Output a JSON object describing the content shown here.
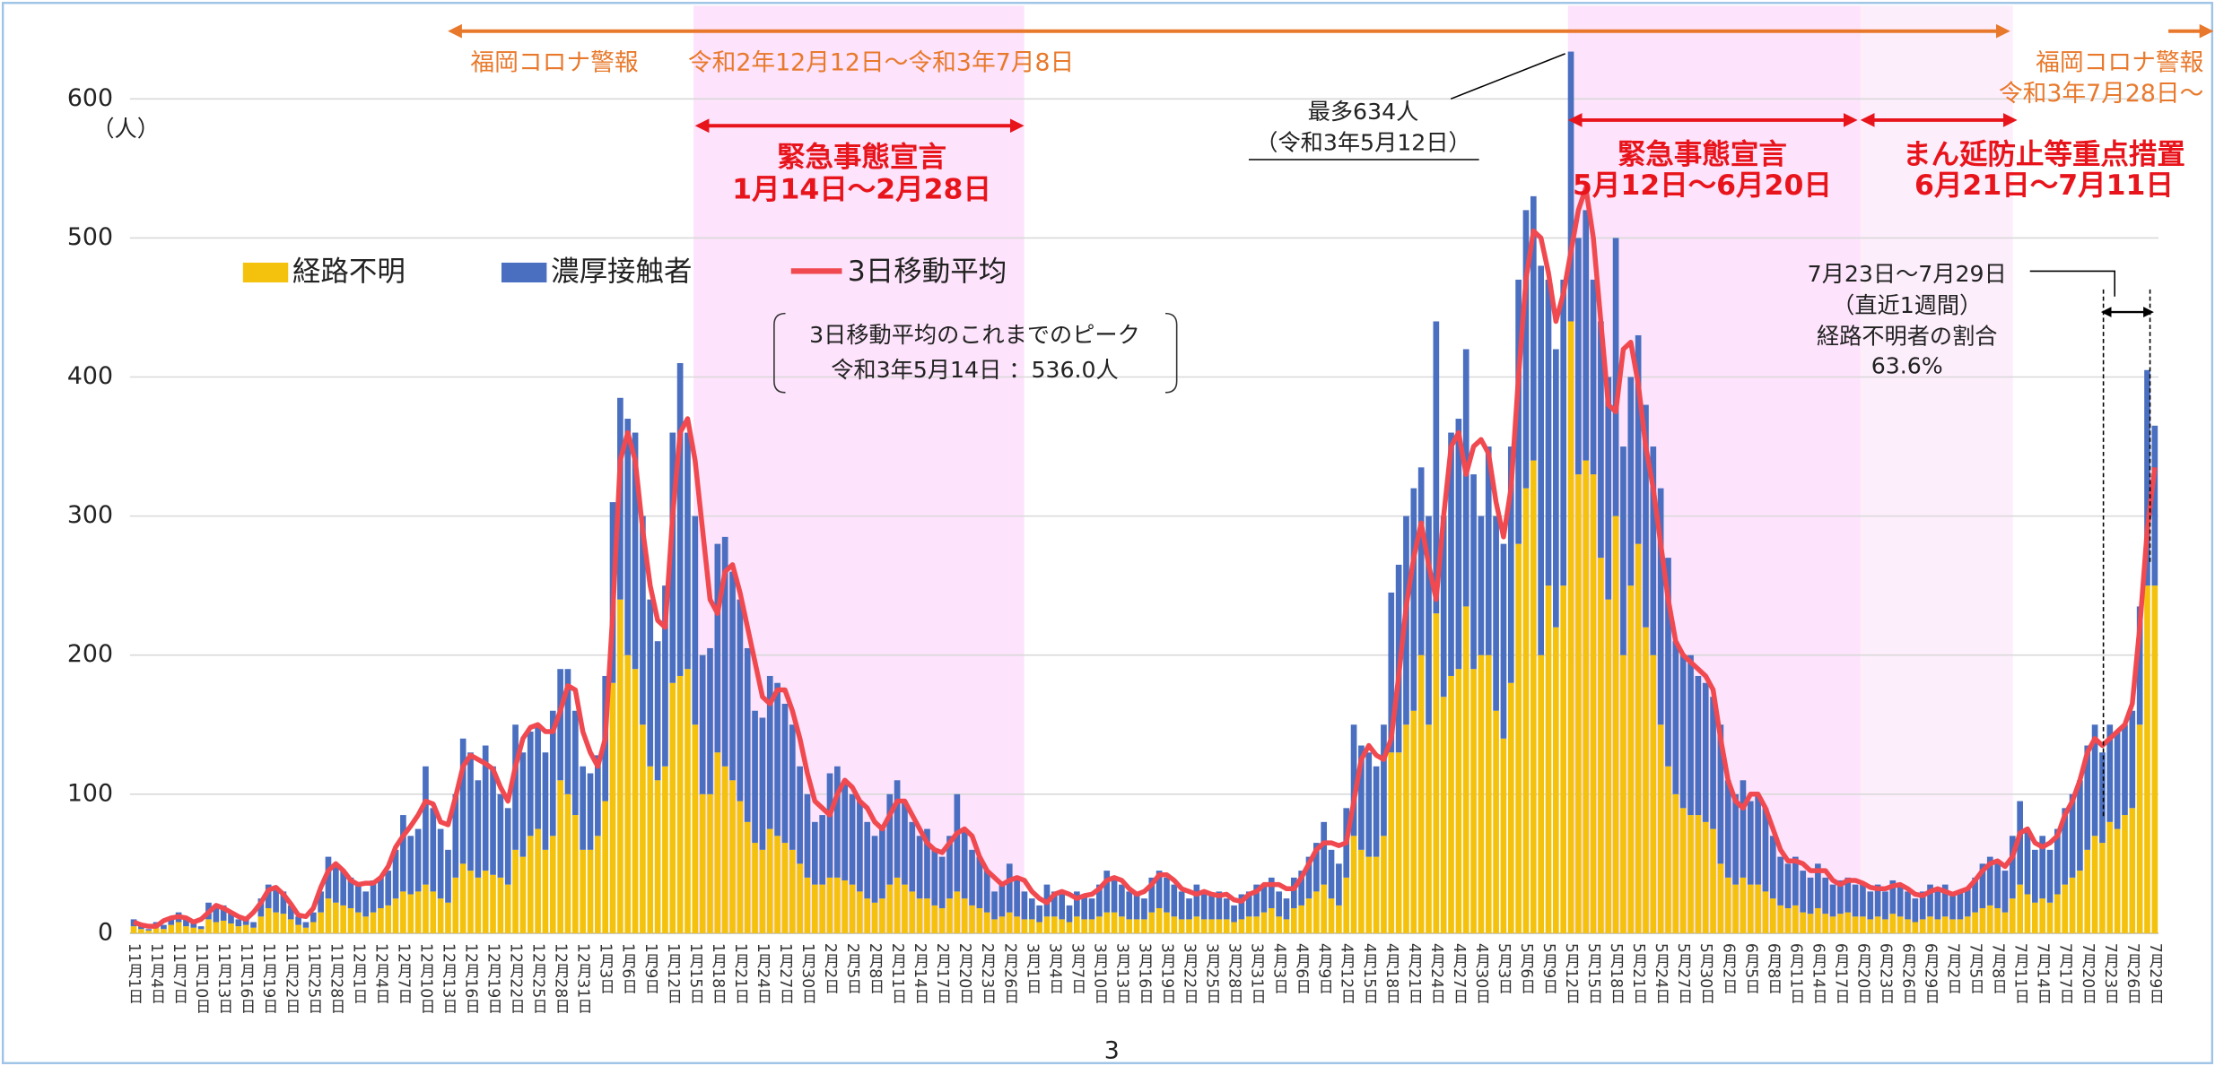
{
  "chart_data": {
    "type": "bar",
    "stacked": true,
    "y_unit": "（人）",
    "page_number": "3",
    "categories": [
      "11月1日",
      null,
      null,
      "11月4日",
      null,
      null,
      "11月7日",
      null,
      null,
      "11月10日",
      null,
      null,
      "11月13日",
      null,
      null,
      "11月16日",
      null,
      null,
      "11月19日",
      null,
      null,
      "11月22日",
      null,
      null,
      "11月25日",
      null,
      null,
      "11月28日",
      null,
      null,
      "12月1日",
      null,
      null,
      "12月4日",
      null,
      null,
      "12月7日",
      null,
      null,
      "12月10日",
      null,
      null,
      "12月13日",
      null,
      null,
      "12月16日",
      null,
      null,
      "12月19日",
      null,
      null,
      "12月22日",
      null,
      null,
      "12月25日",
      null,
      null,
      "12月28日",
      null,
      null,
      "12月31日",
      null,
      null,
      "1月3日",
      null,
      null,
      "1月6日",
      null,
      null,
      "1月9日",
      null,
      null,
      "1月12日",
      null,
      null,
      "1月15日",
      null,
      null,
      "1月18日",
      null,
      null,
      "1月21日",
      null,
      null,
      "1月24日",
      null,
      null,
      "1月27日",
      null,
      null,
      "1月30日",
      null,
      null,
      "2月2日",
      null,
      null,
      "2月5日",
      null,
      null,
      "2月8日",
      null,
      null,
      "2月11日",
      null,
      null,
      "2月14日",
      null,
      null,
      "2月17日",
      null,
      null,
      "2月20日",
      null,
      null,
      "2月23日",
      null,
      null,
      "2月26日",
      null,
      null,
      "3月1日",
      null,
      null,
      "3月4日",
      null,
      null,
      "3月7日",
      null,
      null,
      "3月10日",
      null,
      null,
      "3月13日",
      null,
      null,
      "3月16日",
      null,
      null,
      "3月19日",
      null,
      null,
      "3月22日",
      null,
      null,
      "3月25日",
      null,
      null,
      "3月28日",
      null,
      null,
      "3月31日",
      null,
      null,
      "4月3日",
      null,
      null,
      "4月6日",
      null,
      null,
      "4月9日",
      null,
      null,
      "4月12日",
      null,
      null,
      "4月15日",
      null,
      null,
      "4月18日",
      null,
      null,
      "4月21日",
      null,
      null,
      "4月24日",
      null,
      null,
      "4月27日",
      null,
      null,
      "4月30日",
      null,
      null,
      "5月3日",
      null,
      null,
      "5月6日",
      null,
      null,
      "5月9日",
      null,
      null,
      "5月12日",
      null,
      null,
      "5月15日",
      null,
      null,
      "5月18日",
      null,
      null,
      "5月21日",
      null,
      null,
      "5月24日",
      null,
      null,
      "5月27日",
      null,
      null,
      "5月30日",
      null,
      null,
      "6月2日",
      null,
      null,
      "6月5日",
      null,
      null,
      "6月8日",
      null,
      null,
      "6月11日",
      null,
      null,
      "6月14日",
      null,
      null,
      "6月17日",
      null,
      null,
      "6月20日",
      null,
      null,
      "6月23日",
      null,
      null,
      "6月26日",
      null,
      null,
      "6月29日",
      null,
      null,
      "7月2日",
      null,
      null,
      "7月5日",
      null,
      null,
      "7月8日",
      null,
      null,
      "7月11日",
      null,
      null,
      "7月14日",
      null,
      null,
      "7月17日",
      null,
      null,
      "7月20日",
      null,
      null,
      "7月23日",
      null,
      null,
      "7月26日",
      null,
      null,
      "7月29日"
    ],
    "series": [
      {
        "name": "経路不明",
        "color": "#f4c20d",
        "values": [
          5,
          3,
          2,
          4,
          3,
          6,
          8,
          5,
          4,
          3,
          10,
          8,
          9,
          7,
          5,
          6,
          4,
          12,
          18,
          15,
          14,
          10,
          6,
          4,
          8,
          15,
          25,
          22,
          20,
          18,
          15,
          12,
          15,
          18,
          20,
          25,
          30,
          28,
          30,
          35,
          30,
          25,
          22,
          40,
          50,
          45,
          40,
          45,
          42,
          40,
          35,
          60,
          55,
          70,
          75,
          60,
          70,
          110,
          100,
          85,
          60,
          60,
          70,
          95,
          180,
          240,
          200,
          190,
          150,
          120,
          110,
          120,
          180,
          185,
          190,
          150,
          100,
          100,
          130,
          120,
          110,
          95,
          80,
          65,
          60,
          75,
          70,
          65,
          60,
          50,
          40,
          35,
          35,
          40,
          40,
          38,
          35,
          30,
          25,
          22,
          25,
          35,
          40,
          35,
          30,
          25,
          25,
          20,
          18,
          25,
          30,
          25,
          20,
          18,
          15,
          10,
          12,
          15,
          12,
          10,
          10,
          8,
          12,
          12,
          10,
          8,
          12,
          10,
          10,
          12,
          15,
          15,
          12,
          10,
          10,
          10,
          15,
          18,
          15,
          12,
          10,
          10,
          12,
          10,
          10,
          10,
          10,
          8,
          10,
          12,
          12,
          15,
          18,
          12,
          10,
          18,
          20,
          25,
          30,
          35,
          25,
          20,
          40,
          70,
          60,
          55,
          55,
          70,
          130,
          130,
          150,
          160,
          200,
          150,
          230,
          170,
          185,
          190,
          235,
          190,
          200,
          200,
          160,
          140,
          180,
          280,
          320,
          340,
          200,
          250,
          220,
          250,
          440,
          330,
          340,
          330,
          270,
          240,
          300,
          200,
          250,
          280,
          220,
          200,
          150,
          120,
          100,
          90,
          85,
          85,
          80,
          75,
          50,
          40,
          35,
          40,
          35,
          35,
          30,
          25,
          20,
          18,
          20,
          15,
          14,
          18,
          14,
          12,
          14,
          15,
          12,
          12,
          10,
          12,
          10,
          14,
          12,
          10,
          8,
          10,
          12,
          10,
          12,
          10,
          10,
          12,
          15,
          18,
          20,
          18,
          15,
          25,
          35,
          28,
          22,
          25,
          22,
          28,
          35,
          40,
          45,
          60,
          70,
          65,
          80,
          75,
          85,
          90,
          150,
          250,
          250
        ]
      },
      {
        "name": "濃厚接触者",
        "color": "#4a6fc0",
        "values": [
          5,
          2,
          1,
          4,
          3,
          6,
          7,
          5,
          4,
          2,
          12,
          10,
          11,
          8,
          5,
          6,
          4,
          13,
          17,
          18,
          16,
          10,
          6,
          4,
          7,
          15,
          30,
          28,
          25,
          22,
          20,
          18,
          23,
          22,
          25,
          35,
          55,
          42,
          45,
          85,
          60,
          50,
          38,
          60,
          90,
          85,
          70,
          90,
          78,
          60,
          55,
          90,
          75,
          75,
          75,
          70,
          90,
          80,
          90,
          75,
          60,
          55,
          58,
          90,
          130,
          145,
          170,
          170,
          150,
          120,
          100,
          130,
          180,
          225,
          170,
          150,
          100,
          105,
          150,
          165,
          150,
          145,
          125,
          95,
          95,
          110,
          110,
          100,
          90,
          70,
          60,
          45,
          50,
          75,
          80,
          72,
          65,
          65,
          55,
          48,
          50,
          65,
          70,
          60,
          50,
          45,
          50,
          40,
          37,
          45,
          70,
          50,
          40,
          37,
          30,
          20,
          23,
          35,
          28,
          20,
          15,
          12,
          23,
          18,
          18,
          12,
          18,
          18,
          15,
          23,
          30,
          25,
          23,
          20,
          18,
          15,
          25,
          27,
          25,
          23,
          20,
          15,
          23,
          20,
          18,
          20,
          15,
          12,
          18,
          18,
          23,
          20,
          22,
          18,
          15,
          22,
          25,
          30,
          35,
          45,
          35,
          30,
          50,
          80,
          75,
          75,
          65,
          80,
          115,
          135,
          150,
          160,
          135,
          150,
          210,
          130,
          175,
          180,
          185,
          140,
          100,
          150,
          140,
          140,
          170,
          190,
          200,
          190,
          280,
          220,
          200,
          220,
          194,
          170,
          180,
          140,
          170,
          160,
          200,
          150,
          150,
          150,
          160,
          150,
          170,
          150,
          110,
          110,
          115,
          100,
          100,
          95,
          100,
          70,
          65,
          70,
          60,
          65,
          60,
          45,
          35,
          32,
          35,
          30,
          26,
          32,
          26,
          23,
          24,
          25,
          23,
          23,
          20,
          23,
          20,
          24,
          23,
          20,
          17,
          20,
          23,
          20,
          23,
          18,
          20,
          20,
          25,
          32,
          35,
          32,
          30,
          45,
          60,
          47,
          38,
          45,
          38,
          47,
          55,
          60,
          65,
          75,
          80,
          65,
          70,
          70,
          65,
          70,
          85,
          155,
          115
        ]
      },
      {
        "name": "3日移動平均",
        "color": "#f04a50",
        "type": "line",
        "values": [
          8,
          6,
          5,
          5,
          9,
          11,
          12,
          11,
          8,
          10,
          15,
          20,
          18,
          15,
          12,
          10,
          15,
          22,
          31,
          33,
          28,
          21,
          13,
          12,
          18,
          33,
          45,
          50,
          45,
          38,
          35,
          36,
          36,
          40,
          48,
          62,
          70,
          77,
          85,
          95,
          93,
          80,
          78,
          98,
          120,
          128,
          125,
          122,
          118,
          105,
          95,
          120,
          140,
          148,
          150,
          145,
          145,
          160,
          178,
          175,
          145,
          130,
          120,
          140,
          230,
          340,
          360,
          340,
          290,
          250,
          225,
          220,
          300,
          360,
          370,
          340,
          290,
          240,
          230,
          260,
          265,
          245,
          220,
          195,
          170,
          165,
          175,
          175,
          160,
          140,
          115,
          95,
          90,
          85,
          100,
          110,
          105,
          95,
          90,
          80,
          75,
          85,
          95,
          95,
          85,
          75,
          65,
          60,
          58,
          65,
          72,
          75,
          70,
          55,
          45,
          40,
          35,
          38,
          40,
          38,
          30,
          25,
          22,
          28,
          30,
          28,
          25,
          27,
          28,
          32,
          38,
          40,
          38,
          32,
          28,
          30,
          35,
          42,
          42,
          38,
          32,
          30,
          28,
          30,
          28,
          27,
          28,
          24,
          23,
          28,
          30,
          35,
          35,
          35,
          32,
          32,
          40,
          50,
          60,
          65,
          65,
          63,
          65,
          95,
          125,
          135,
          128,
          125,
          140,
          185,
          235,
          270,
          295,
          265,
          240,
          300,
          350,
          360,
          330,
          350,
          355,
          345,
          310,
          285,
          320,
          400,
          470,
          505,
          500,
          475,
          440,
          460,
          490,
          520,
          536,
          500,
          440,
          380,
          375,
          420,
          425,
          395,
          350,
          320,
          280,
          240,
          210,
          200,
          195,
          190,
          185,
          175,
          140,
          110,
          95,
          90,
          100,
          100,
          90,
          75,
          60,
          52,
          52,
          50,
          45,
          45,
          45,
          38,
          35,
          38,
          38,
          36,
          33,
          32,
          32,
          34,
          35,
          32,
          28,
          27,
          30,
          32,
          30,
          28,
          30,
          32,
          38,
          45,
          50,
          52,
          48,
          55,
          72,
          75,
          65,
          62,
          65,
          70,
          85,
          95,
          110,
          130,
          140,
          135,
          140,
          145,
          150,
          165,
          220,
          290,
          335
        ]
      }
    ],
    "ylim": [
      0,
      640
    ],
    "yticks": [
      0,
      100,
      200,
      300,
      400,
      500,
      600
    ],
    "grid": true,
    "annotations": [
      "福岡コロナ警報",
      "令和2年12月12日～令和3年7月8日",
      "福岡コロナ警報",
      "令和3年7月28日～",
      "緊急事態宣言",
      "1月14日～2月28日",
      "最多634人",
      "（令和3年5月12日）",
      "緊急事態宣言",
      "5月12日～6月20日",
      "まん延防止等重点措置",
      "6月21日～7月11日",
      "3日移動平均のこれまでのピーク",
      "令和3年5月14日 ：536.0人",
      "7月23日～7月29日",
      "（直近1週間）",
      "経路不明者の割合",
      "63.6%"
    ]
  }
}
